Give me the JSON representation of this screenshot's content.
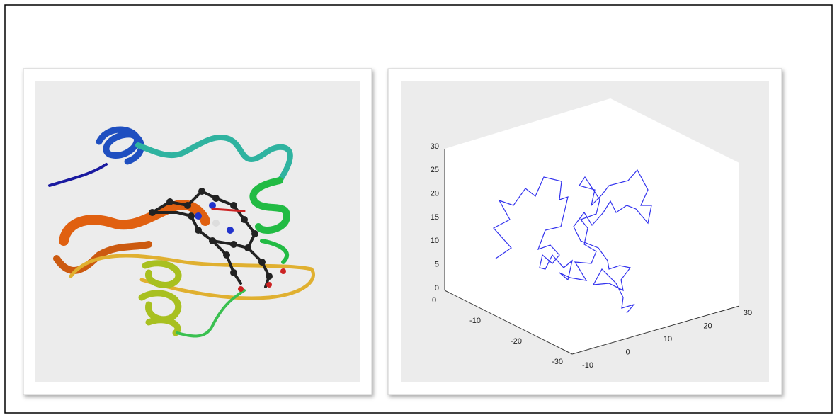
{
  "plot": {
    "z_ticks": [
      30,
      25,
      20,
      15,
      10,
      5,
      0
    ],
    "left_ticks": [
      0,
      -10,
      -20,
      -30
    ],
    "right_ticks": [
      -10,
      0,
      10,
      20,
      30
    ]
  }
}
